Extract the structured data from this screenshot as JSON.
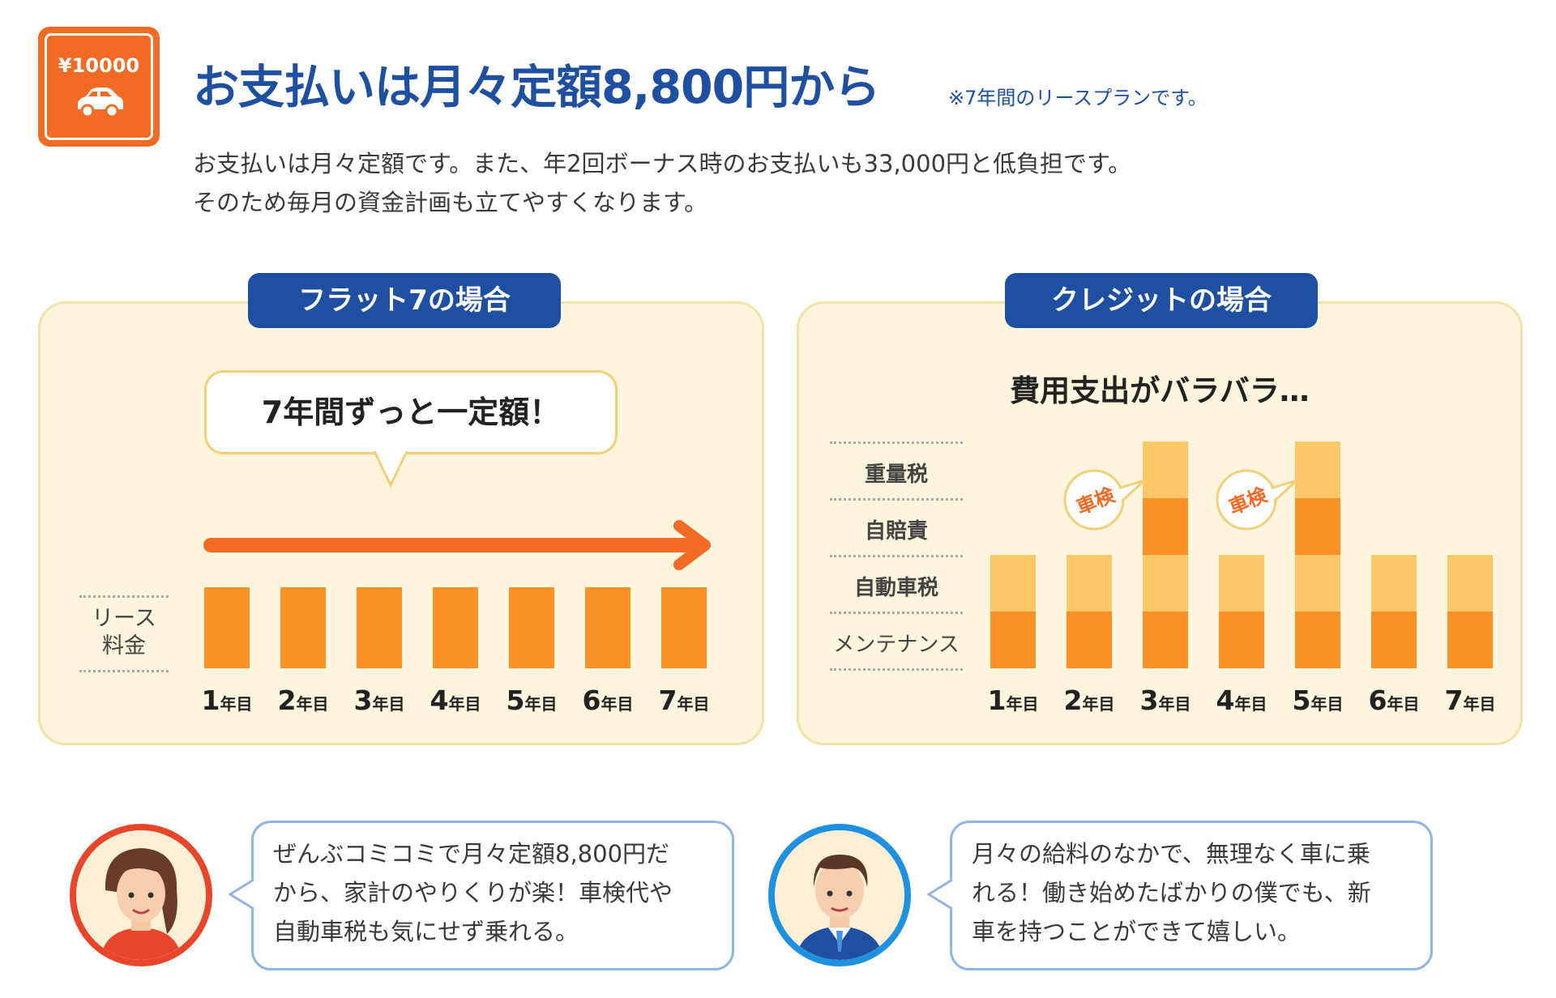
{
  "badge": {
    "price": "¥10000",
    "icon": "car-icon"
  },
  "header": {
    "title": "お支払いは月々定額8,800円から",
    "note": "※7年間のリースプランです。",
    "lead_line1": "お支払いは月々定額です。また、年2回ボーナス時のお支払いも33,000円と低負担です。",
    "lead_line2": "そのため毎月の資金計画も立てやすくなります。"
  },
  "left_panel": {
    "tab": "フラット7の場合",
    "bubble": "7年間ずっと一定額！",
    "row_label_1": "リース",
    "row_label_2": "料金",
    "years": [
      "1",
      "2",
      "3",
      "4",
      "5",
      "6",
      "7"
    ],
    "year_unit": "年目",
    "monthly_fee_level": [
      1,
      1,
      1,
      1,
      1,
      1,
      1
    ]
  },
  "right_panel": {
    "tab": "クレジットの場合",
    "title": "費用支出がバラバラ…",
    "row_labels": [
      "重量税",
      "自賠責",
      "自動車税",
      "メンテナンス"
    ],
    "years": [
      "1",
      "2",
      "3",
      "4",
      "5",
      "6",
      "7"
    ],
    "year_unit": "年目",
    "inspection_label": "車検",
    "stack_levels": [
      2,
      2,
      4,
      2,
      4,
      2,
      2
    ],
    "inspection_years": [
      "2",
      "4"
    ]
  },
  "colors": {
    "brand_blue": "#1e4fa0",
    "orange": "#f26b25",
    "bar_dark": "#fa9228",
    "bar_light": "#fcc868",
    "panel_bg": "#fdf5dc"
  },
  "testimonials": [
    {
      "avatar": "woman-avatar",
      "line1": "ぜんぶコミコミで月々定額8,800円だ",
      "line2": "から、家計のやりくりが楽！車検代や",
      "line3": "自動車税も気にせず乗れる。"
    },
    {
      "avatar": "man-avatar",
      "line1": "月々の給料のなかで、無理なく車に乗",
      "line2": "れる！働き始めたばかりの僕でも、新",
      "line3": "車を持つことができて嬉しい。"
    }
  ]
}
